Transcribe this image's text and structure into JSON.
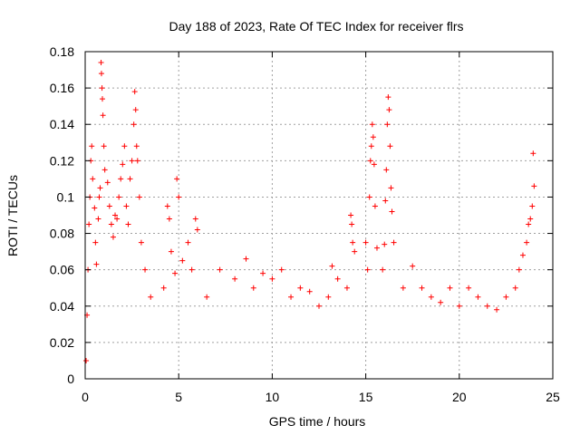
{
  "chart_data": {
    "type": "scatter",
    "title": "Day 188 of 2023, Rate Of TEC Index for receiver flrs",
    "xlabel": "GPS time / hours",
    "ylabel": "ROTI / TECUs",
    "xlim": [
      0,
      25
    ],
    "ylim": [
      0,
      0.18
    ],
    "xticks": [
      0,
      5,
      10,
      15,
      20,
      25
    ],
    "xtick_labels": [
      "0",
      "5",
      "10",
      "15",
      "20",
      "25"
    ],
    "yticks": [
      0,
      0.02,
      0.04,
      0.06,
      0.08,
      0.1,
      0.12,
      0.14,
      0.16,
      0.18
    ],
    "ytick_labels": [
      "0",
      "0.02",
      "0.04",
      "0.06",
      "0.08",
      "0.1",
      "0.12",
      "0.14",
      "0.16",
      "0.18"
    ],
    "grid": true,
    "marker": "+",
    "color": "#ff0000",
    "series": [
      {
        "name": "ROTI",
        "points": [
          [
            0.05,
            0.01
          ],
          [
            0.1,
            0.035
          ],
          [
            0.15,
            0.06
          ],
          [
            0.2,
            0.085
          ],
          [
            0.25,
            0.1
          ],
          [
            0.3,
            0.12
          ],
          [
            0.35,
            0.128
          ],
          [
            0.4,
            0.11
          ],
          [
            0.5,
            0.094
          ],
          [
            0.55,
            0.075
          ],
          [
            0.6,
            0.063
          ],
          [
            0.7,
            0.088
          ],
          [
            0.75,
            0.1
          ],
          [
            0.8,
            0.105
          ],
          [
            0.85,
            0.174
          ],
          [
            0.87,
            0.168
          ],
          [
            0.9,
            0.16
          ],
          [
            0.92,
            0.154
          ],
          [
            0.95,
            0.145
          ],
          [
            1.0,
            0.128
          ],
          [
            1.05,
            0.115
          ],
          [
            1.2,
            0.108
          ],
          [
            1.3,
            0.095
          ],
          [
            1.4,
            0.085
          ],
          [
            1.5,
            0.078
          ],
          [
            1.6,
            0.09
          ],
          [
            1.7,
            0.088
          ],
          [
            1.8,
            0.1
          ],
          [
            1.9,
            0.11
          ],
          [
            2.0,
            0.118
          ],
          [
            2.1,
            0.128
          ],
          [
            2.2,
            0.095
          ],
          [
            2.3,
            0.085
          ],
          [
            2.4,
            0.11
          ],
          [
            2.5,
            0.12
          ],
          [
            2.6,
            0.14
          ],
          [
            2.65,
            0.158
          ],
          [
            2.7,
            0.148
          ],
          [
            2.75,
            0.128
          ],
          [
            2.8,
            0.12
          ],
          [
            2.9,
            0.1
          ],
          [
            3.0,
            0.075
          ],
          [
            3.2,
            0.06
          ],
          [
            3.5,
            0.045
          ],
          [
            4.2,
            0.05
          ],
          [
            4.4,
            0.095
          ],
          [
            4.5,
            0.088
          ],
          [
            4.6,
            0.07
          ],
          [
            4.8,
            0.058
          ],
          [
            4.9,
            0.11
          ],
          [
            5.0,
            0.1
          ],
          [
            5.2,
            0.065
          ],
          [
            5.5,
            0.075
          ],
          [
            5.7,
            0.06
          ],
          [
            5.9,
            0.088
          ],
          [
            6.0,
            0.082
          ],
          [
            6.5,
            0.045
          ],
          [
            7.2,
            0.06
          ],
          [
            8.0,
            0.055
          ],
          [
            8.6,
            0.066
          ],
          [
            9.0,
            0.05
          ],
          [
            9.5,
            0.058
          ],
          [
            10.0,
            0.055
          ],
          [
            10.5,
            0.06
          ],
          [
            11.0,
            0.045
          ],
          [
            11.5,
            0.05
          ],
          [
            12.0,
            0.048
          ],
          [
            12.5,
            0.04
          ],
          [
            13.0,
            0.045
          ],
          [
            13.2,
            0.062
          ],
          [
            13.5,
            0.055
          ],
          [
            14.0,
            0.05
          ],
          [
            14.2,
            0.09
          ],
          [
            14.25,
            0.085
          ],
          [
            14.3,
            0.075
          ],
          [
            14.4,
            0.07
          ],
          [
            15.0,
            0.075
          ],
          [
            15.1,
            0.06
          ],
          [
            15.2,
            0.1
          ],
          [
            15.25,
            0.12
          ],
          [
            15.3,
            0.128
          ],
          [
            15.35,
            0.14
          ],
          [
            15.4,
            0.133
          ],
          [
            15.45,
            0.118
          ],
          [
            15.5,
            0.095
          ],
          [
            15.6,
            0.072
          ],
          [
            15.9,
            0.06
          ],
          [
            16.0,
            0.074
          ],
          [
            16.05,
            0.098
          ],
          [
            16.1,
            0.115
          ],
          [
            16.15,
            0.14
          ],
          [
            16.2,
            0.155
          ],
          [
            16.25,
            0.148
          ],
          [
            16.3,
            0.128
          ],
          [
            16.35,
            0.105
          ],
          [
            16.4,
            0.092
          ],
          [
            16.5,
            0.075
          ],
          [
            17.0,
            0.05
          ],
          [
            17.5,
            0.062
          ],
          [
            18.0,
            0.05
          ],
          [
            18.5,
            0.045
          ],
          [
            19.0,
            0.042
          ],
          [
            19.5,
            0.05
          ],
          [
            20.0,
            0.04
          ],
          [
            20.5,
            0.05
          ],
          [
            21.0,
            0.045
          ],
          [
            21.5,
            0.04
          ],
          [
            22.0,
            0.038
          ],
          [
            22.5,
            0.045
          ],
          [
            23.0,
            0.05
          ],
          [
            23.2,
            0.06
          ],
          [
            23.4,
            0.068
          ],
          [
            23.6,
            0.075
          ],
          [
            23.7,
            0.085
          ],
          [
            23.8,
            0.088
          ],
          [
            23.9,
            0.095
          ],
          [
            23.95,
            0.124
          ],
          [
            24.0,
            0.106
          ]
        ]
      }
    ]
  }
}
